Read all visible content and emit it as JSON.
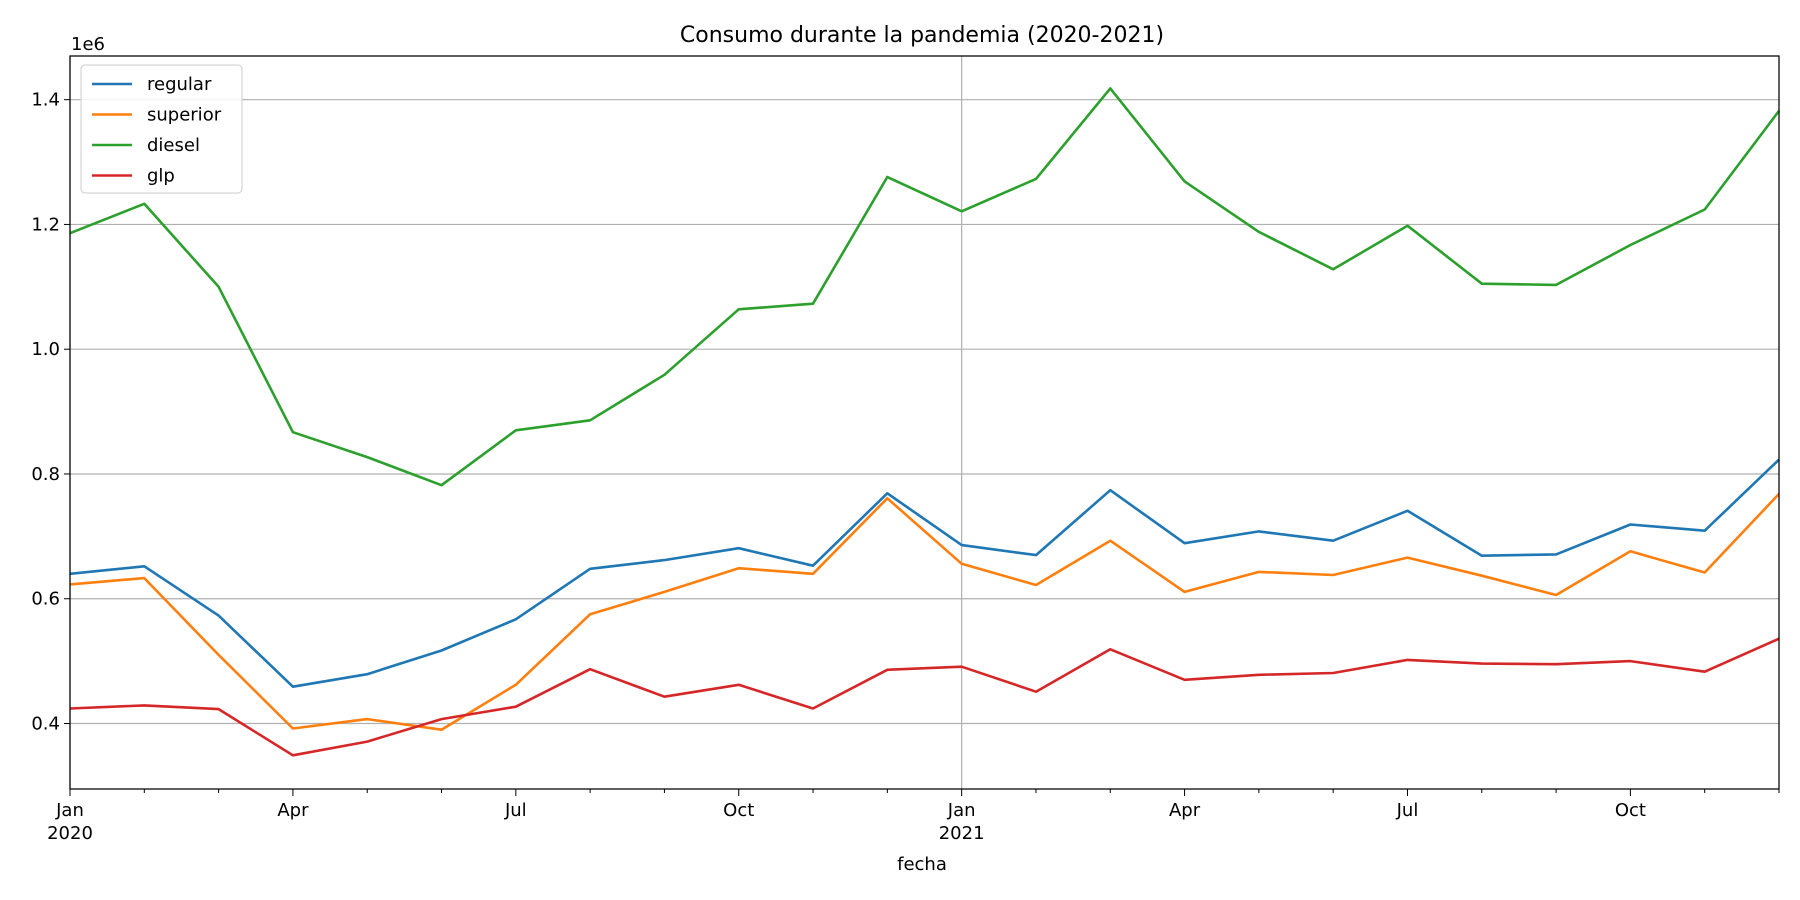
{
  "chart_data": {
    "type": "line",
    "title": "Consumo durante la pandemia (2020-2021)",
    "xlabel": "fecha",
    "ylabel": "",
    "offset_label": "1e6",
    "x": [
      "2020-01",
      "2020-02",
      "2020-03",
      "2020-04",
      "2020-05",
      "2020-06",
      "2020-07",
      "2020-08",
      "2020-09",
      "2020-10",
      "2020-11",
      "2020-12",
      "2021-01",
      "2021-02",
      "2021-03",
      "2021-04",
      "2021-05",
      "2021-06",
      "2021-07",
      "2021-08",
      "2021-09",
      "2021-10",
      "2021-11",
      "2021-12"
    ],
    "x_ticks": [
      {
        "x": "2020-01",
        "line1": "Jan",
        "line2": "2020"
      },
      {
        "x": "2020-04",
        "line1": "Apr",
        "line2": ""
      },
      {
        "x": "2020-07",
        "line1": "Jul",
        "line2": ""
      },
      {
        "x": "2020-10",
        "line1": "Oct",
        "line2": ""
      },
      {
        "x": "2021-01",
        "line1": "Jan",
        "line2": "2021"
      },
      {
        "x": "2021-04",
        "line1": "Apr",
        "line2": ""
      },
      {
        "x": "2021-07",
        "line1": "Jul",
        "line2": ""
      },
      {
        "x": "2021-10",
        "line1": "Oct",
        "line2": ""
      }
    ],
    "y_ticks": [
      "0.4",
      "0.6",
      "0.8",
      "1.0",
      "1.2",
      "1.4"
    ],
    "ylim": [
      0.295,
      1.47
    ],
    "grid": true,
    "legend_position": "top-left",
    "series": [
      {
        "name": "regular",
        "color": "#1f77b4",
        "values": [
          0.64,
          0.652,
          0.573,
          0.459,
          0.479,
          0.517,
          0.567,
          0.648,
          0.662,
          0.681,
          0.653,
          0.769,
          0.686,
          0.67,
          0.774,
          0.689,
          0.708,
          0.693,
          0.741,
          0.669,
          0.671,
          0.719,
          0.709,
          0.823
        ]
      },
      {
        "name": "superior",
        "color": "#ff7f0e",
        "values": [
          0.623,
          0.633,
          0.51,
          0.392,
          0.407,
          0.39,
          0.462,
          0.575,
          0.611,
          0.649,
          0.64,
          0.761,
          0.656,
          0.622,
          0.693,
          0.611,
          0.643,
          0.638,
          0.666,
          0.637,
          0.606,
          0.676,
          0.642,
          0.768
        ]
      },
      {
        "name": "diesel",
        "color": "#2ca02c",
        "values": [
          1.186,
          1.233,
          1.1,
          0.867,
          0.827,
          0.782,
          0.87,
          0.886,
          0.959,
          1.064,
          1.073,
          1.276,
          1.221,
          1.273,
          1.418,
          1.269,
          1.188,
          1.128,
          1.198,
          1.105,
          1.103,
          1.167,
          1.224,
          1.382
        ]
      },
      {
        "name": "glp",
        "color": "#d62728",
        "values": [
          0.424,
          0.429,
          0.423,
          0.349,
          0.371,
          0.407,
          0.427,
          0.487,
          0.443,
          0.462,
          0.424,
          0.486,
          0.491,
          0.451,
          0.519,
          0.47,
          0.478,
          0.481,
          0.502,
          0.496,
          0.495,
          0.5,
          0.483,
          0.536
        ]
      }
    ]
  }
}
